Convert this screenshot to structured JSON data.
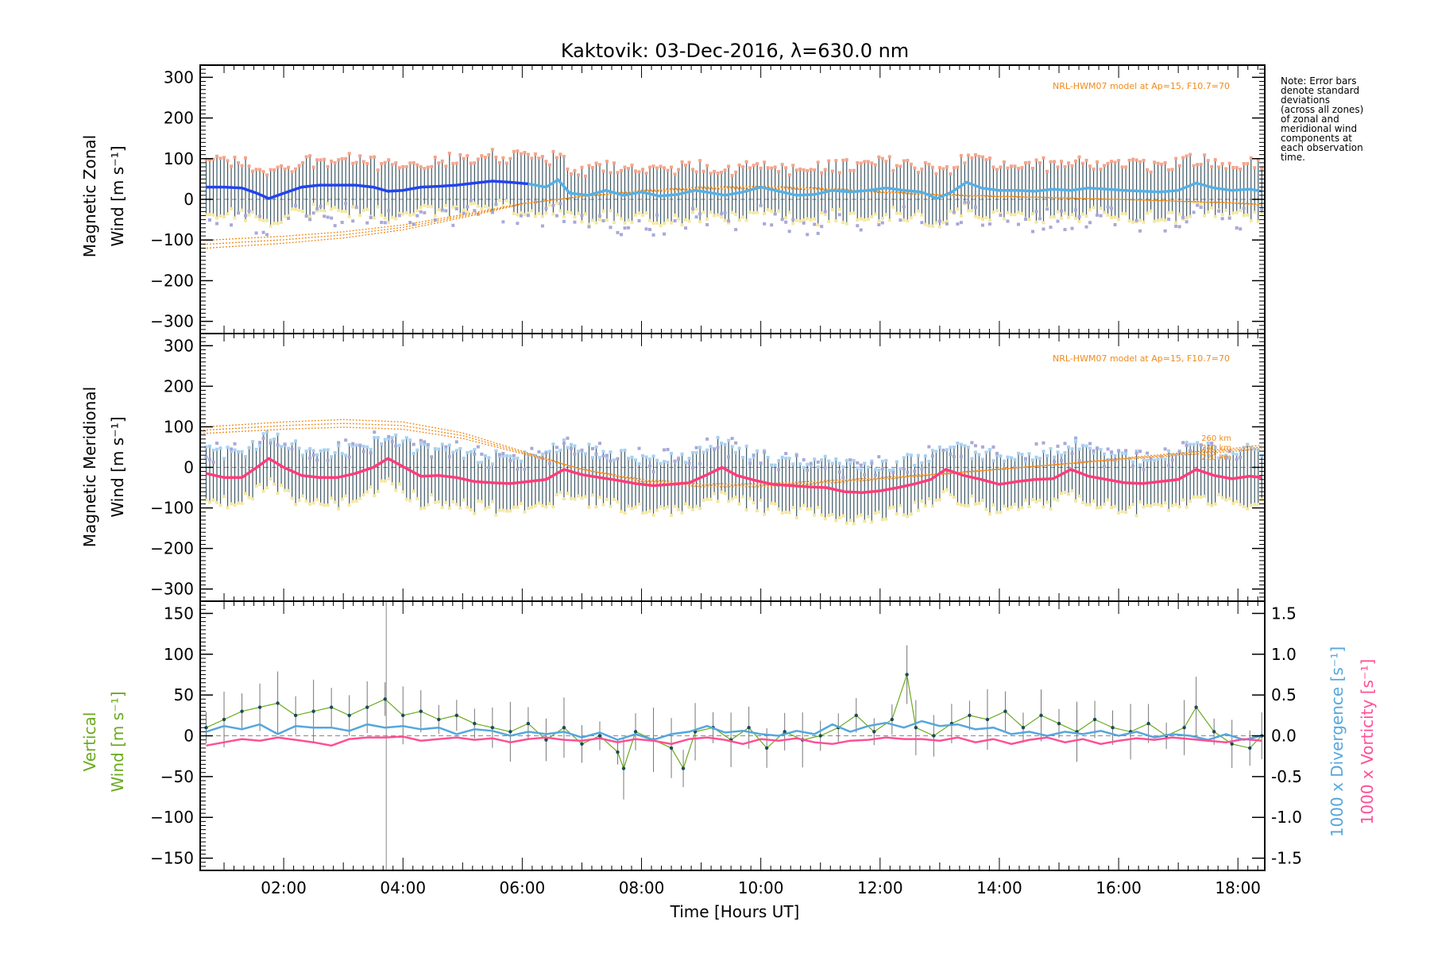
{
  "title": "Kaktovik: 03-Dec-2016, λ=630.0 nm",
  "note": [
    "Note: Error bars",
    "denote standard",
    "deviations",
    "(across all zones)",
    "of zonal and",
    "meridional wind",
    "components at",
    "each observation",
    "time."
  ],
  "model_label": "NRL-HWM07 model at Ap=15, F10.7=70",
  "altitude_labels": [
    "260 km",
    "240 km",
    "220 km"
  ],
  "xlabel": "Time [Hours UT]",
  "colors": {
    "zonal_mean": "#2244ee",
    "zonal_mean_late": "#55b0e6",
    "meridional_mean": "#ff3c7a",
    "vertical": "#6aaa1e",
    "divergence": "#55a7dd",
    "vorticity": "#ff4f96",
    "model": "#f08a1a",
    "error_bar": "#1b3a4a",
    "scatter_purple": "#a8a8d8",
    "scatter_salmon": "#f4a58c",
    "scatter_yellow": "#f5e7a0",
    "scatter_lightblue": "#a8d0f0"
  },
  "chart_data": [
    {
      "type": "line",
      "name": "zonal",
      "ylabel": [
        "Magnetic Zonal",
        "Wind [m s⁻¹]"
      ],
      "xlim": [
        0.6,
        18.45
      ],
      "ylim": [
        -330,
        330
      ],
      "xticks": [
        2,
        4,
        6,
        8,
        10,
        12,
        14,
        16,
        18
      ],
      "xtick_labels": [
        "02:00",
        "04:00",
        "06:00",
        "08:00",
        "10:00",
        "12:00",
        "14:00",
        "16:00",
        "18:00"
      ],
      "yticks": [
        -300,
        -200,
        -100,
        0,
        100,
        200,
        300
      ],
      "series": [
        {
          "role": "mean",
          "x": [
            0.7,
            1.0,
            1.3,
            1.55,
            1.75,
            2.0,
            2.3,
            2.6,
            2.9,
            3.2,
            3.5,
            3.75,
            4.0,
            4.3,
            4.6,
            4.9,
            5.2,
            5.5,
            5.8,
            6.1,
            6.4,
            6.6,
            6.8,
            7.1,
            7.4,
            7.7,
            8.0,
            8.3,
            8.6,
            8.9,
            9.2,
            9.4,
            9.7,
            10.0,
            10.3,
            10.6,
            10.9,
            11.2,
            11.5,
            11.8,
            12.1,
            12.4,
            12.7,
            12.95,
            13.2,
            13.45,
            13.7,
            14.0,
            14.3,
            14.6,
            14.9,
            15.2,
            15.5,
            15.8,
            16.1,
            16.4,
            16.7,
            17.0,
            17.3,
            17.6,
            17.9,
            18.2,
            18.4
          ],
          "y": [
            30,
            30,
            28,
            15,
            2,
            15,
            30,
            35,
            35,
            35,
            30,
            20,
            22,
            30,
            32,
            35,
            40,
            45,
            42,
            38,
            30,
            48,
            15,
            10,
            22,
            10,
            18,
            8,
            12,
            22,
            15,
            10,
            18,
            30,
            20,
            10,
            12,
            22,
            18,
            22,
            28,
            22,
            18,
            2,
            18,
            42,
            28,
            22,
            22,
            20,
            25,
            22,
            28,
            25,
            22,
            20,
            18,
            22,
            40,
            28,
            22,
            25,
            20
          ]
        },
        {
          "role": "model",
          "x": [
            0.7,
            2,
            3,
            4,
            5,
            6,
            7,
            8,
            9,
            10,
            11,
            12,
            13,
            14,
            15,
            16,
            17,
            18,
            18.4
          ],
          "y": [
            -120,
            -108,
            -95,
            -75,
            -45,
            -12,
            8,
            22,
            30,
            32,
            28,
            20,
            12,
            8,
            4,
            0,
            -5,
            -10,
            -15
          ]
        }
      ]
    },
    {
      "type": "line",
      "name": "meridional",
      "ylabel": [
        "Magnetic Meridional",
        "Wind [m s⁻¹]"
      ],
      "xlim": [
        0.6,
        18.45
      ],
      "ylim": [
        -330,
        330
      ],
      "yticks": [
        -300,
        -200,
        -100,
        0,
        100,
        200,
        300
      ],
      "series": [
        {
          "role": "mean",
          "x": [
            0.7,
            1.0,
            1.3,
            1.55,
            1.75,
            2.0,
            2.3,
            2.6,
            2.9,
            3.2,
            3.5,
            3.75,
            4.0,
            4.3,
            4.6,
            4.9,
            5.2,
            5.5,
            5.8,
            6.1,
            6.4,
            6.7,
            7.0,
            7.3,
            7.6,
            7.9,
            8.2,
            8.5,
            8.8,
            9.1,
            9.35,
            9.6,
            9.9,
            10.2,
            10.5,
            10.8,
            11.1,
            11.4,
            11.7,
            12.0,
            12.3,
            12.6,
            12.85,
            13.1,
            13.4,
            13.7,
            14.0,
            14.3,
            14.6,
            14.9,
            15.2,
            15.5,
            15.8,
            16.1,
            16.4,
            16.7,
            17.0,
            17.3,
            17.6,
            17.9,
            18.2,
            18.4
          ],
          "y": [
            -15,
            -25,
            -25,
            0,
            22,
            0,
            -20,
            -25,
            -25,
            -15,
            0,
            22,
            2,
            -22,
            -20,
            -25,
            -35,
            -38,
            -40,
            -35,
            -30,
            -5,
            -18,
            -25,
            -32,
            -40,
            -45,
            -42,
            -38,
            -18,
            0,
            -20,
            -32,
            -42,
            -45,
            -48,
            -50,
            -60,
            -62,
            -58,
            -50,
            -40,
            -30,
            -5,
            -20,
            -30,
            -42,
            -35,
            -30,
            -28,
            -5,
            -22,
            -30,
            -38,
            -40,
            -35,
            -30,
            -5,
            -20,
            -28,
            -22,
            -25
          ]
        },
        {
          "role": "model",
          "x": [
            0.7,
            2,
            3,
            4,
            5,
            6,
            7,
            8,
            9,
            10,
            11,
            12,
            13,
            14,
            15,
            16,
            17,
            18,
            18.4
          ],
          "y": [
            100,
            112,
            118,
            112,
            85,
            40,
            -5,
            -35,
            -48,
            -48,
            -40,
            -30,
            -18,
            -5,
            8,
            22,
            35,
            48,
            55
          ]
        }
      ]
    },
    {
      "type": "line",
      "name": "vertical",
      "ylabel": [
        "Vertical",
        "Wind [m s⁻¹]"
      ],
      "y2label": [
        "1000 x Divergence [s⁻¹]",
        "1000 x Vorticity [s⁻¹]"
      ],
      "xlim": [
        0.6,
        18.45
      ],
      "ylim": [
        -165,
        165
      ],
      "yticks": [
        -150,
        -100,
        -50,
        0,
        50,
        100,
        150
      ],
      "y2lim": [
        -1.65,
        1.65
      ],
      "y2ticks": [
        -1.5,
        -1.0,
        -0.5,
        0.0,
        0.5,
        1.0,
        1.5
      ],
      "series": [
        {
          "name": "Vertical Wind",
          "role": "vertical",
          "x": [
            0.7,
            1.0,
            1.3,
            1.6,
            1.9,
            2.2,
            2.5,
            2.8,
            3.1,
            3.4,
            3.7,
            4.0,
            4.3,
            4.6,
            4.9,
            5.2,
            5.5,
            5.8,
            6.1,
            6.4,
            6.7,
            7.0,
            7.3,
            7.6,
            7.7,
            7.9,
            8.2,
            8.5,
            8.7,
            8.9,
            9.2,
            9.5,
            9.8,
            10.1,
            10.4,
            10.7,
            11.0,
            11.3,
            11.6,
            11.9,
            12.2,
            12.45,
            12.6,
            12.9,
            13.2,
            13.5,
            13.8,
            14.1,
            14.4,
            14.7,
            15.0,
            15.3,
            15.6,
            15.9,
            16.2,
            16.5,
            16.8,
            17.1,
            17.3,
            17.6,
            17.9,
            18.2,
            18.4
          ],
          "y": [
            10,
            20,
            30,
            35,
            40,
            25,
            30,
            35,
            25,
            35,
            45,
            25,
            30,
            20,
            25,
            15,
            10,
            5,
            15,
            -5,
            10,
            -10,
            0,
            -20,
            -40,
            5,
            -5,
            -15,
            -40,
            5,
            10,
            -5,
            10,
            -15,
            5,
            -5,
            0,
            10,
            25,
            5,
            20,
            75,
            10,
            0,
            15,
            25,
            20,
            30,
            10,
            25,
            15,
            5,
            20,
            10,
            5,
            15,
            0,
            10,
            35,
            5,
            -10,
            -15,
            0
          ]
        },
        {
          "name": "Divergence",
          "role": "divergence",
          "x": [
            0.7,
            1.0,
            1.3,
            1.6,
            1.9,
            2.2,
            2.5,
            2.8,
            3.1,
            3.4,
            3.7,
            4.0,
            4.3,
            4.6,
            4.9,
            5.2,
            5.5,
            5.8,
            6.1,
            6.4,
            6.7,
            7.0,
            7.3,
            7.6,
            7.9,
            8.2,
            8.5,
            8.8,
            9.1,
            9.4,
            9.7,
            10.0,
            10.3,
            10.6,
            10.9,
            11.2,
            11.5,
            11.8,
            12.1,
            12.4,
            12.7,
            13.0,
            13.3,
            13.6,
            13.9,
            14.2,
            14.5,
            14.8,
            15.1,
            15.4,
            15.7,
            16.0,
            16.3,
            16.6,
            16.9,
            17.2,
            17.5,
            17.8,
            18.1,
            18.4
          ],
          "y": [
            0.05,
            0.12,
            0.08,
            0.14,
            0.02,
            0.12,
            0.1,
            0.1,
            0.06,
            0.14,
            0.1,
            0.12,
            0.08,
            0.1,
            0.02,
            0.08,
            0.06,
            0.0,
            0.05,
            0.02,
            0.05,
            -0.02,
            0.04,
            -0.05,
            0.02,
            -0.05,
            0.02,
            0.05,
            0.12,
            0.04,
            0.06,
            0.02,
            0.0,
            0.06,
            0.02,
            0.14,
            0.05,
            0.12,
            0.16,
            0.1,
            0.18,
            0.12,
            0.14,
            0.08,
            0.1,
            0.02,
            0.05,
            0.0,
            0.05,
            0.02,
            0.06,
            0.0,
            0.05,
            -0.02,
            0.02,
            0.0,
            -0.05,
            0.02,
            -0.05,
            0.0
          ]
        },
        {
          "name": "Vorticity",
          "role": "vorticity",
          "x": [
            0.7,
            1.0,
            1.3,
            1.6,
            1.9,
            2.2,
            2.5,
            2.8,
            3.1,
            3.4,
            3.7,
            4.0,
            4.3,
            4.6,
            4.9,
            5.2,
            5.5,
            5.8,
            6.1,
            6.4,
            6.7,
            7.0,
            7.3,
            7.6,
            7.9,
            8.2,
            8.5,
            8.8,
            9.1,
            9.4,
            9.7,
            10.0,
            10.3,
            10.6,
            10.9,
            11.2,
            11.5,
            11.8,
            12.1,
            12.4,
            12.7,
            13.0,
            13.3,
            13.6,
            13.9,
            14.2,
            14.5,
            14.8,
            15.1,
            15.4,
            15.7,
            16.0,
            16.3,
            16.6,
            16.9,
            17.2,
            17.5,
            17.8,
            18.1,
            18.4
          ],
          "y": [
            -0.12,
            -0.08,
            -0.04,
            -0.06,
            -0.02,
            -0.05,
            -0.08,
            -0.12,
            -0.04,
            -0.02,
            -0.02,
            -0.01,
            -0.06,
            -0.04,
            -0.02,
            -0.05,
            -0.03,
            -0.08,
            -0.04,
            -0.02,
            -0.05,
            -0.06,
            -0.03,
            -0.08,
            -0.04,
            -0.06,
            -0.1,
            -0.04,
            -0.02,
            -0.05,
            -0.1,
            -0.04,
            -0.06,
            -0.03,
            -0.08,
            -0.1,
            -0.06,
            -0.05,
            -0.02,
            -0.04,
            -0.04,
            -0.06,
            -0.02,
            -0.08,
            -0.04,
            -0.1,
            -0.05,
            -0.02,
            -0.08,
            -0.04,
            -0.1,
            -0.06,
            -0.03,
            -0.05,
            -0.02,
            -0.04,
            -0.06,
            -0.08,
            -0.04,
            -0.06
          ]
        }
      ]
    }
  ]
}
